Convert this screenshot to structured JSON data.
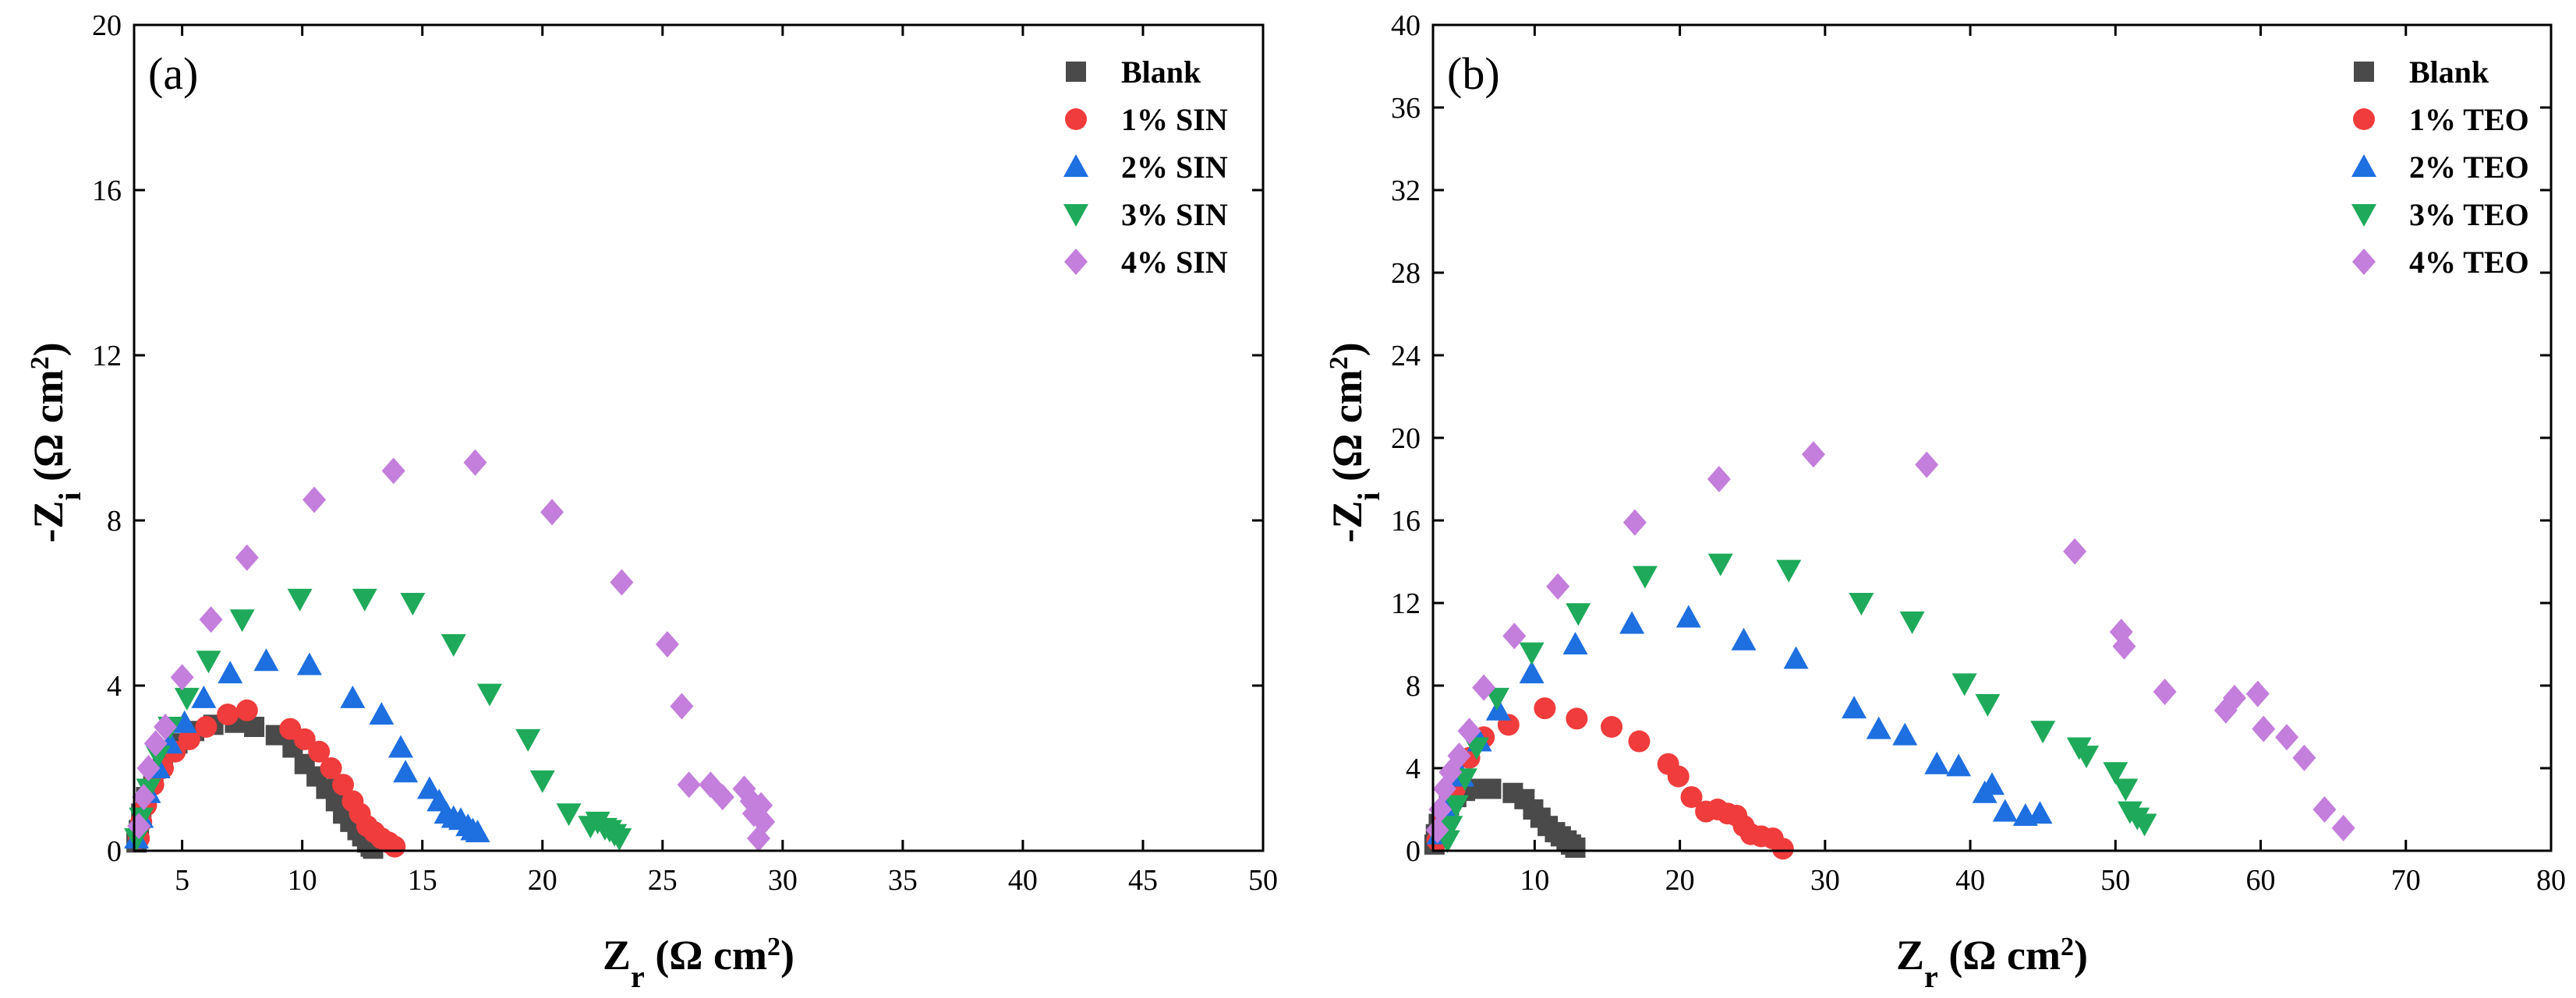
{
  "chart_data": [
    {
      "type": "scatter",
      "panel_label": "(a)",
      "xlabel": {
        "main": "Z",
        "sub": "r",
        "unit": " (Ω cm",
        "sup": "2",
        "close": ")"
      },
      "ylabel": {
        "main": "-Z",
        "sub": "i",
        "unit": " (Ω cm",
        "sup": "2",
        "close": ")"
      },
      "xlim": [
        3,
        50
      ],
      "ylim": [
        0,
        20
      ],
      "xticks": [
        5,
        10,
        15,
        20,
        25,
        30,
        35,
        40,
        45,
        50
      ],
      "yticks": [
        0,
        4,
        8,
        12,
        16,
        20
      ],
      "legend_position": "top-right",
      "series": [
        {
          "name": "Blank",
          "marker": "square",
          "color": "#4a4a4a",
          "x": [
            3.1,
            3.2,
            3.3,
            3.5,
            3.8,
            4.2,
            4.8,
            5.5,
            6.3,
            7.2,
            8.0,
            8.9,
            9.6,
            10.1,
            10.6,
            11.0,
            11.4,
            11.7,
            12.0,
            12.3,
            12.5,
            12.7,
            12.85,
            12.95
          ],
          "y": [
            0.2,
            0.5,
            0.9,
            1.3,
            1.8,
            2.2,
            2.6,
            2.9,
            3.05,
            3.1,
            3.0,
            2.8,
            2.5,
            2.1,
            1.8,
            1.5,
            1.2,
            0.9,
            0.7,
            0.5,
            0.35,
            0.2,
            0.1,
            0.05
          ]
        },
        {
          "name": "1% SIN",
          "marker": "circle",
          "color": "#f03c3c",
          "x": [
            3.2,
            3.3,
            3.5,
            3.8,
            4.2,
            4.7,
            5.3,
            6.0,
            6.9,
            7.7,
            9.5,
            10.1,
            10.7,
            11.2,
            11.7,
            12.1,
            12.4,
            12.7,
            13.0,
            13.3,
            13.6,
            13.85
          ],
          "y": [
            0.3,
            0.7,
            1.1,
            1.6,
            2.0,
            2.4,
            2.7,
            3.0,
            3.3,
            3.4,
            2.95,
            2.7,
            2.4,
            2.0,
            1.6,
            1.2,
            0.9,
            0.6,
            0.45,
            0.3,
            0.2,
            0.1
          ]
        },
        {
          "name": "2% SIN",
          "marker": "triangle-up",
          "color": "#1e6fe0",
          "x": [
            3.1,
            3.3,
            3.6,
            4.0,
            4.5,
            5.1,
            5.9,
            7.0,
            8.5,
            10.3,
            12.1,
            13.3,
            14.1,
            14.3,
            15.3,
            15.7,
            16.0,
            16.3,
            16.6,
            16.9,
            17.1,
            17.3
          ],
          "y": [
            0.3,
            0.8,
            1.4,
            2.0,
            2.6,
            3.1,
            3.7,
            4.3,
            4.6,
            4.5,
            3.7,
            3.3,
            2.5,
            1.9,
            1.5,
            1.2,
            0.9,
            0.8,
            0.75,
            0.6,
            0.5,
            0.45
          ]
        },
        {
          "name": "3% SIN",
          "marker": "triangle-down",
          "color": "#1eaa5a",
          "x": [
            3.1,
            3.3,
            3.6,
            4.0,
            4.5,
            5.2,
            6.1,
            7.5,
            9.9,
            12.6,
            14.6,
            16.3,
            17.8,
            19.4,
            20.0,
            21.1,
            22.0,
            22.3,
            22.6,
            22.8,
            23.0,
            23.2
          ],
          "y": [
            0.3,
            0.8,
            1.5,
            2.3,
            3.0,
            3.7,
            4.6,
            5.6,
            6.1,
            6.1,
            6.0,
            5.0,
            3.8,
            2.7,
            1.7,
            0.9,
            0.6,
            0.7,
            0.55,
            0.5,
            0.4,
            0.3
          ]
        },
        {
          "name": "4% SIN",
          "marker": "diamond",
          "color": "#c47edc",
          "x": [
            3.2,
            3.4,
            3.6,
            3.9,
            4.3,
            5.0,
            6.2,
            7.7,
            10.5,
            13.8,
            17.2,
            20.4,
            23.3,
            25.2,
            25.8,
            26.1,
            27.0,
            27.5,
            28.4,
            28.7,
            28.8,
            29.0,
            29.1,
            29.2
          ],
          "y": [
            0.6,
            1.3,
            2.0,
            2.6,
            3.0,
            4.2,
            5.6,
            7.1,
            8.5,
            9.2,
            9.4,
            8.2,
            6.5,
            5.0,
            3.5,
            1.6,
            1.6,
            1.3,
            1.5,
            1.2,
            0.9,
            0.3,
            1.1,
            0.7
          ]
        }
      ]
    },
    {
      "type": "scatter",
      "panel_label": "(b)",
      "xlabel": {
        "main": "Z",
        "sub": "r",
        "unit": " (Ω cm",
        "sup": "2",
        "close": ")"
      },
      "ylabel": {
        "main": "-Z",
        "sub": "i",
        "unit": " (Ω cm",
        "sup": "2",
        "close": ")"
      },
      "xlim": [
        3,
        80
      ],
      "ylim": [
        0,
        40
      ],
      "xticks": [
        10,
        20,
        30,
        40,
        50,
        60,
        70,
        80
      ],
      "yticks": [
        0,
        4,
        8,
        12,
        16,
        20,
        24,
        28,
        32,
        36,
        40
      ],
      "legend_position": "top-right",
      "series": [
        {
          "name": "Blank",
          "marker": "square",
          "color": "#4a4a4a",
          "x": [
            3.1,
            3.2,
            3.4,
            3.7,
            4.1,
            4.6,
            5.2,
            6.0,
            7.0,
            8.5,
            9.3,
            9.9,
            10.4,
            10.9,
            11.4,
            11.8,
            12.2,
            12.5,
            12.8
          ],
          "y": [
            0.3,
            0.8,
            1.3,
            1.8,
            2.2,
            2.6,
            2.9,
            3.0,
            3.0,
            2.8,
            2.5,
            2.0,
            1.6,
            1.2,
            0.9,
            0.7,
            0.5,
            0.3,
            0.15
          ]
        },
        {
          "name": "1% TEO",
          "marker": "circle",
          "color": "#f03c3c",
          "x": [
            3.3,
            3.8,
            4.5,
            5.5,
            6.5,
            8.2,
            10.7,
            12.9,
            15.3,
            17.2,
            19.2,
            19.9,
            20.8,
            21.8,
            22.6,
            23.3,
            23.9,
            24.4,
            24.9,
            25.6,
            26.4,
            27.1
          ],
          "y": [
            0.5,
            1.5,
            3.0,
            4.5,
            5.5,
            6.1,
            6.9,
            6.4,
            6.0,
            5.3,
            4.2,
            3.6,
            2.6,
            1.9,
            2.0,
            1.8,
            1.7,
            1.2,
            0.8,
            0.7,
            0.6,
            0.1
          ]
        },
        {
          "name": "2% TEO",
          "marker": "triangle-up",
          "color": "#1e6fe0",
          "x": [
            3.4,
            4.0,
            5.0,
            6.2,
            7.5,
            9.8,
            12.8,
            16.7,
            20.6,
            24.4,
            28.0,
            32.0,
            33.7,
            35.5,
            37.7,
            39.2,
            41.0,
            41.5,
            42.4,
            43.8,
            44.8
          ],
          "y": [
            0.8,
            2.0,
            3.6,
            5.3,
            6.8,
            8.6,
            10.0,
            11.0,
            11.3,
            10.2,
            9.3,
            6.9,
            5.9,
            5.6,
            4.2,
            4.1,
            2.8,
            3.2,
            1.9,
            1.7,
            1.8
          ]
        },
        {
          "name": "3% TEO",
          "marker": "triangle-down",
          "color": "#1eaa5a",
          "x": [
            4.0,
            4.2,
            4.6,
            5.2,
            6.0,
            7.4,
            9.8,
            13.0,
            17.6,
            22.8,
            27.5,
            32.5,
            36.0,
            39.6,
            41.2,
            45.0,
            47.5,
            48.0,
            50.0,
            50.7,
            51.0,
            51.5,
            52.0
          ],
          "y": [
            0.5,
            1.2,
            2.2,
            3.5,
            5.0,
            7.4,
            9.6,
            11.5,
            13.3,
            13.9,
            13.6,
            12.0,
            11.1,
            8.1,
            7.1,
            5.8,
            5.0,
            4.6,
            3.8,
            3.0,
            1.9,
            1.6,
            1.3
          ]
        },
        {
          "name": "4% TEO",
          "marker": "diamond",
          "color": "#c47edc",
          "x": [
            3.3,
            3.5,
            3.8,
            4.2,
            4.8,
            5.5,
            6.5,
            8.6,
            11.6,
            16.9,
            22.7,
            29.2,
            37.0,
            47.2,
            50.4,
            50.6,
            53.4,
            57.6,
            58.2,
            59.8,
            60.2,
            61.8,
            63.0,
            64.4,
            65.7
          ],
          "y": [
            1.0,
            2.0,
            3.0,
            3.8,
            4.6,
            5.8,
            7.9,
            10.4,
            12.8,
            15.9,
            18.0,
            19.2,
            18.7,
            14.5,
            10.6,
            9.9,
            7.7,
            6.8,
            7.4,
            7.6,
            5.9,
            5.5,
            4.5,
            2.0,
            1.1
          ]
        }
      ]
    }
  ]
}
